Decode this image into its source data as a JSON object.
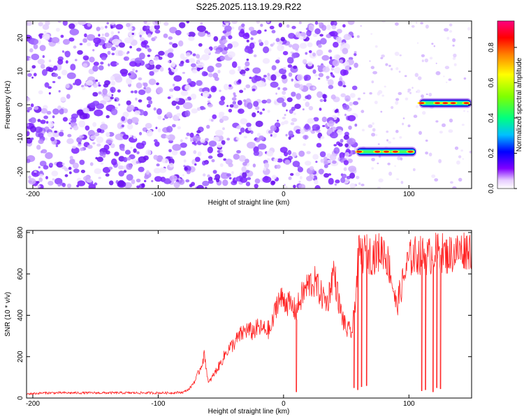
{
  "chart_data": [
    {
      "type": "heatmap",
      "title": "S225.2025.113.19.29.R22",
      "xlabel": "Height of straight line (km)",
      "ylabel": "Frequency (Hz)",
      "xlim": [
        -205,
        150
      ],
      "ylim": [
        -25,
        25
      ],
      "x_ticks": [
        -200,
        -100,
        0,
        100
      ],
      "y_ticks": [
        20,
        10,
        0,
        -10,
        -20
      ],
      "grid": false,
      "colorbar": {
        "label": "Normalized spectral amplitude",
        "range": [
          0.0,
          0.95
        ],
        "ticks": [
          "0.0",
          "0.2",
          "0.4",
          "0.6",
          "0.8"
        ],
        "colors": [
          "#ffffff",
          "#8000ff",
          "#0000ff",
          "#00c0ff",
          "#00ff80",
          "#80ff00",
          "#ffff00",
          "#ff8000",
          "#ff0000",
          "#ff0080"
        ]
      },
      "regions": [
        {
          "name": "noise",
          "x_start": -205,
          "x_end": 58,
          "freq_range": [
            -25,
            25
          ],
          "amplitude": 0.1
        },
        {
          "name": "sparse-noise",
          "x_start": 58,
          "x_end": 150,
          "freq_range": [
            -25,
            25
          ],
          "amplitude": 0.03
        }
      ],
      "tones": [
        {
          "x_start": 58,
          "x_end": 106,
          "freq": -14,
          "peak_amplitude": 0.9
        },
        {
          "x_start": 108,
          "x_end": 150,
          "freq": 0.5,
          "peak_amplitude": 0.9
        }
      ]
    },
    {
      "type": "line",
      "xlabel": "Height of straight line (km)",
      "ylabel": "SNR (10 * v/v)",
      "xlim": [
        -205,
        150
      ],
      "ylim": [
        0,
        810
      ],
      "x_ticks": [
        -200,
        -100,
        0,
        100
      ],
      "y_ticks": [
        0,
        200,
        400,
        600,
        800
      ],
      "grid": false,
      "series_color": "#ff2020",
      "x": [
        -205,
        -190,
        -170,
        -150,
        -130,
        -110,
        -90,
        -80,
        -75,
        -70,
        -66,
        -63,
        -60,
        -55,
        -50,
        -45,
        -40,
        -35,
        -30,
        -25,
        -20,
        -15,
        -10,
        -5,
        0,
        5,
        10,
        15,
        20,
        25,
        30,
        35,
        40,
        45,
        50,
        55,
        60,
        65,
        70,
        75,
        80,
        85,
        90,
        95,
        100,
        105,
        110,
        115,
        120,
        125,
        130,
        135,
        140,
        145,
        150
      ],
      "y": [
        20,
        25,
        25,
        25,
        25,
        25,
        25,
        28,
        45,
        90,
        150,
        210,
        70,
        120,
        170,
        230,
        260,
        300,
        330,
        320,
        340,
        330,
        330,
        470,
        480,
        450,
        420,
        500,
        550,
        560,
        500,
        460,
        620,
        430,
        330,
        320,
        690,
        700,
        690,
        700,
        720,
        620,
        440,
        560,
        670,
        690,
        690,
        680,
        700,
        710,
        690,
        700,
        710,
        720,
        720
      ],
      "dropouts": [
        {
          "x": 10,
          "y": 30
        },
        {
          "x": 56,
          "y": 50
        },
        {
          "x": 59,
          "y": 40
        },
        {
          "x": 62,
          "y": 55
        },
        {
          "x": 66,
          "y": 60
        },
        {
          "x": 110,
          "y": 35
        },
        {
          "x": 113,
          "y": 40
        },
        {
          "x": 119,
          "y": 30
        },
        {
          "x": 122,
          "y": 50
        },
        {
          "x": 125,
          "y": 45
        }
      ]
    }
  ]
}
